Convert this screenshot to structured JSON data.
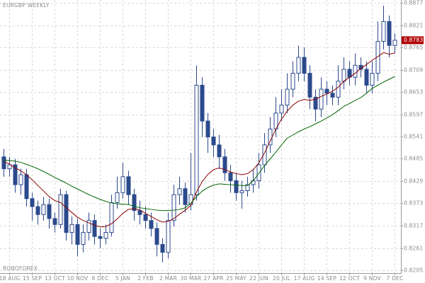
{
  "chart_data": {
    "type": "candlestick",
    "title": "EURGBP WEEKLY",
    "watermark": "ROBOFOREX",
    "categories": [
      null,
      "18 AUG",
      null,
      null,
      null,
      "15 SEP",
      null,
      null,
      null,
      "13 OCT",
      null,
      null,
      null,
      "10 NOV",
      null,
      null,
      null,
      "8 DEC",
      null,
      null,
      null,
      "5 JAN",
      null,
      null,
      null,
      "2 FEB",
      null,
      null,
      null,
      "2 MAR",
      null,
      null,
      null,
      "30 MAR",
      null,
      null,
      null,
      "27 APR",
      null,
      null,
      null,
      "25 MAY",
      null,
      null,
      null,
      "22 JUN",
      null,
      null,
      null,
      "20 JUL",
      null,
      null,
      null,
      "17 AUG",
      null,
      null,
      null,
      "14 SEP",
      null,
      null,
      null,
      "12 OCT",
      null,
      null,
      null,
      "9 NOV",
      null,
      null,
      null,
      "7 DEC"
    ],
    "open": [
      0.849,
      0.846,
      0.847,
      0.842,
      0.8445,
      0.8385,
      0.8365,
      0.8345,
      0.837,
      0.8335,
      0.832,
      0.8395,
      0.83,
      0.832,
      0.827,
      0.83,
      0.833,
      0.829,
      0.8285,
      0.83,
      0.8375,
      0.84,
      0.844,
      0.8395,
      0.8355,
      0.8345,
      0.833,
      0.831,
      0.827,
      0.825,
      0.833,
      0.8395,
      0.841,
      0.837,
      0.8395,
      0.867,
      0.858,
      0.854,
      0.852,
      0.849,
      0.845,
      0.843,
      0.84,
      0.8405,
      0.842,
      0.843,
      0.847,
      0.852,
      0.856,
      0.86,
      0.862,
      0.866,
      0.87,
      0.874,
      0.87,
      0.864,
      0.861,
      0.866,
      0.865,
      0.864,
      0.868,
      0.871,
      0.869,
      0.872,
      0.871,
      0.867,
      0.87,
      0.878,
      0.883,
      0.877
    ],
    "high": [
      0.851,
      0.849,
      0.8485,
      0.846,
      0.846,
      0.84,
      0.838,
      0.839,
      0.8385,
      0.835,
      0.841,
      0.8405,
      0.834,
      0.8335,
      0.832,
      0.835,
      0.8345,
      0.831,
      0.832,
      0.8395,
      0.844,
      0.8475,
      0.8455,
      0.841,
      0.838,
      0.8365,
      0.835,
      0.8325,
      0.8285,
      0.835,
      0.842,
      0.844,
      0.8425,
      0.85,
      0.872,
      0.869,
      0.86,
      0.856,
      0.8545,
      0.851,
      0.847,
      0.845,
      0.843,
      0.844,
      0.846,
      0.85,
      0.855,
      0.859,
      0.864,
      0.866,
      0.87,
      0.873,
      0.877,
      0.8765,
      0.872,
      0.866,
      0.869,
      0.868,
      0.867,
      0.872,
      0.874,
      0.873,
      0.875,
      0.874,
      0.873,
      0.873,
      0.883,
      0.887,
      0.8845,
      0.88
    ],
    "low": [
      0.844,
      0.844,
      0.84,
      0.8395,
      0.8365,
      0.833,
      0.832,
      0.833,
      0.831,
      0.83,
      0.831,
      0.828,
      0.827,
      0.824,
      0.825,
      0.828,
      0.827,
      0.826,
      0.827,
      0.829,
      0.836,
      0.8385,
      0.837,
      0.833,
      0.832,
      0.831,
      0.829,
      0.824,
      0.8225,
      0.8235,
      0.8315,
      0.837,
      0.835,
      0.8355,
      0.838,
      0.854,
      0.85,
      0.849,
      0.846,
      0.843,
      0.84,
      0.838,
      0.836,
      0.839,
      0.84,
      0.841,
      0.845,
      0.85,
      0.854,
      0.858,
      0.86,
      0.864,
      0.868,
      0.868,
      0.861,
      0.858,
      0.859,
      0.862,
      0.862,
      0.862,
      0.866,
      0.867,
      0.867,
      0.869,
      0.865,
      0.865,
      0.868,
      0.876,
      0.874,
      0.875
    ],
    "close": [
      0.846,
      0.847,
      0.842,
      0.8445,
      0.8385,
      0.8365,
      0.8345,
      0.837,
      0.8335,
      0.832,
      0.8395,
      0.83,
      0.832,
      0.827,
      0.83,
      0.833,
      0.829,
      0.8285,
      0.83,
      0.8375,
      0.84,
      0.844,
      0.8395,
      0.8355,
      0.8345,
      0.833,
      0.831,
      0.827,
      0.825,
      0.833,
      0.8395,
      0.841,
      0.837,
      0.8395,
      0.867,
      0.858,
      0.854,
      0.852,
      0.849,
      0.845,
      0.843,
      0.84,
      0.8405,
      0.842,
      0.843,
      0.847,
      0.852,
      0.856,
      0.86,
      0.862,
      0.866,
      0.87,
      0.874,
      0.87,
      0.864,
      0.861,
      0.866,
      0.865,
      0.864,
      0.868,
      0.871,
      0.869,
      0.872,
      0.871,
      0.867,
      0.87,
      0.878,
      0.883,
      0.877,
      0.8783
    ],
    "up_color": "#ffffff",
    "down_color": "#2b4a8c",
    "candle_edge": "#2b4a8c",
    "lines": [
      {
        "color": "#8b0000",
        "values": [
          0.8478,
          0.8472,
          0.8462,
          0.8455,
          0.8445,
          0.8432,
          0.8418,
          0.8404,
          0.839,
          0.838,
          0.8375,
          0.8362,
          0.835,
          0.8338,
          0.833,
          0.8324,
          0.8318,
          0.8314,
          0.8315,
          0.8322,
          0.8334,
          0.8348,
          0.8358,
          0.836,
          0.8356,
          0.8348,
          0.834,
          0.8332,
          0.8326,
          0.8328,
          0.8335,
          0.8346,
          0.8356,
          0.8368,
          0.8402,
          0.8428,
          0.8446,
          0.8458,
          0.8462,
          0.8458,
          0.8452,
          0.8448,
          0.8445,
          0.8448,
          0.8458,
          0.8475,
          0.85,
          0.853,
          0.856,
          0.8585,
          0.8605,
          0.862,
          0.863,
          0.8634,
          0.8632,
          0.8635,
          0.8642,
          0.8648,
          0.8655,
          0.8665,
          0.868,
          0.869,
          0.87,
          0.8712,
          0.8722,
          0.8733,
          0.8742,
          0.8752,
          0.8748,
          0.8751
        ]
      },
      {
        "color": "#006400",
        "values": [
          0.8482,
          0.8481,
          0.8479,
          0.8476,
          0.8471,
          0.8466,
          0.846,
          0.8453,
          0.8446,
          0.8438,
          0.8431,
          0.8424,
          0.8416,
          0.8409,
          0.8402,
          0.8395,
          0.8389,
          0.8383,
          0.8378,
          0.8374,
          0.8372,
          0.8371,
          0.837,
          0.8366,
          0.8362,
          0.836,
          0.8358,
          0.8356,
          0.8355,
          0.8355,
          0.8356,
          0.8358,
          0.8362,
          0.8374,
          0.839,
          0.8404,
          0.8413,
          0.8419,
          0.8422,
          0.8421,
          0.842,
          0.8419,
          0.8418,
          0.8418,
          0.843,
          0.8449,
          0.8468,
          0.8485,
          0.8502,
          0.852,
          0.8537,
          0.8545,
          0.8553,
          0.856,
          0.8566,
          0.8573,
          0.858,
          0.8588,
          0.8596,
          0.8606,
          0.8617,
          0.8624,
          0.8632,
          0.8639,
          0.865,
          0.8662,
          0.867,
          0.8678,
          0.8685,
          0.8692
        ]
      }
    ],
    "last_price_color": "#b00000",
    "ylim": [
      0.8205,
      0.8877
    ],
    "yticks": [
      0.8205,
      0.8261,
      0.8317,
      0.8373,
      0.8429,
      0.8485,
      0.8541,
      0.8597,
      0.8653,
      0.8709,
      0.8765,
      0.8821,
      0.8877
    ],
    "grid": true
  }
}
